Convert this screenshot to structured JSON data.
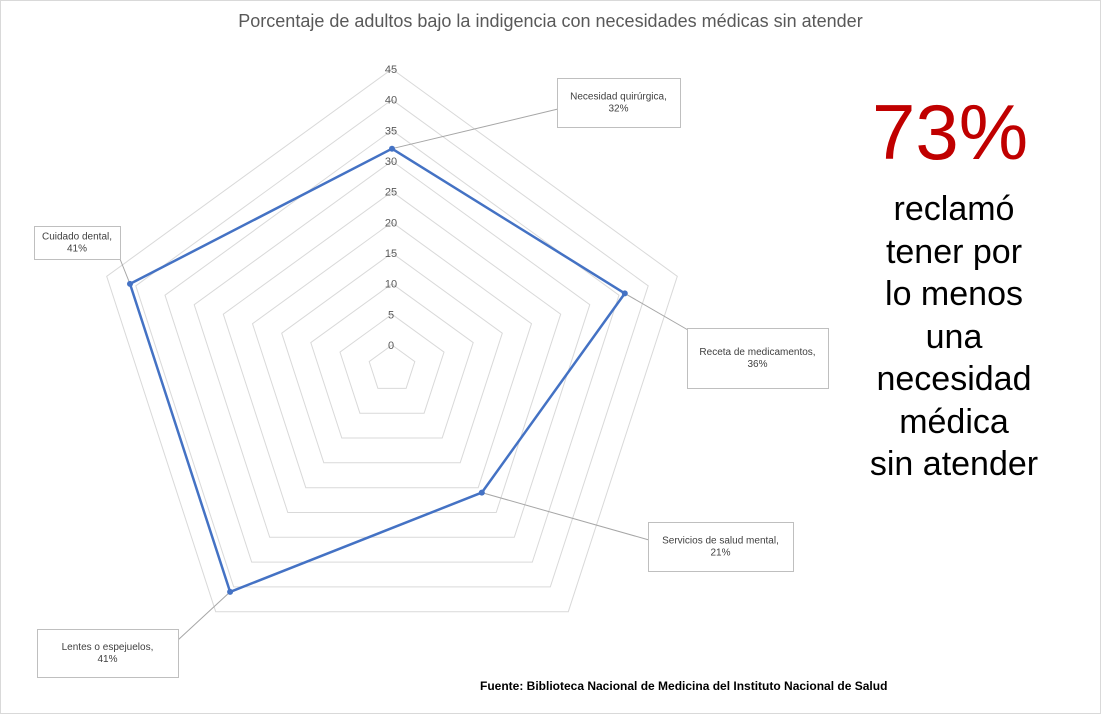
{
  "chart_data": {
    "type": "radar",
    "title": "Porcentaje de adultos bajo la indigencia con necesidades médicas sin atender",
    "categories": [
      "Necesidad quirúrgica",
      "Receta de medicamentos",
      "Servicios de salud mental",
      "Lentes o espejuelos",
      "Cuidado dental"
    ],
    "series": [
      {
        "values": [
          32,
          36,
          21,
          41,
          41
        ],
        "color": "#4472c4"
      }
    ],
    "axis": {
      "min": 0,
      "max": 45,
      "step": 5,
      "ticks": [
        "0",
        "5",
        "10",
        "15",
        "20",
        "25",
        "30",
        "35",
        "40",
        "45"
      ]
    },
    "data_labels": [
      {
        "line1": "Necesidad quirúrgica,",
        "line2": "32%"
      },
      {
        "line1": "Receta de medicamentos,",
        "line2": "36%"
      },
      {
        "line1": "Servicios de salud mental,",
        "line2": "21%"
      },
      {
        "line1": "Lentes o espejuelos,",
        "line2": "41%"
      },
      {
        "line1": "Cuidado dental,",
        "line2": "41%"
      }
    ],
    "grid": true,
    "gridline_color": "#d9d9d9"
  },
  "callout": {
    "big_number": "73%",
    "big_color": "#c00000",
    "lines": [
      "reclamó",
      "tener por",
      "lo menos",
      "una",
      "necesidad",
      "médica",
      "sin atender"
    ]
  },
  "source": "Fuente:  Biblioteca  Nacional  de  Medicina  del Instituto  Nacional  de  Salud"
}
